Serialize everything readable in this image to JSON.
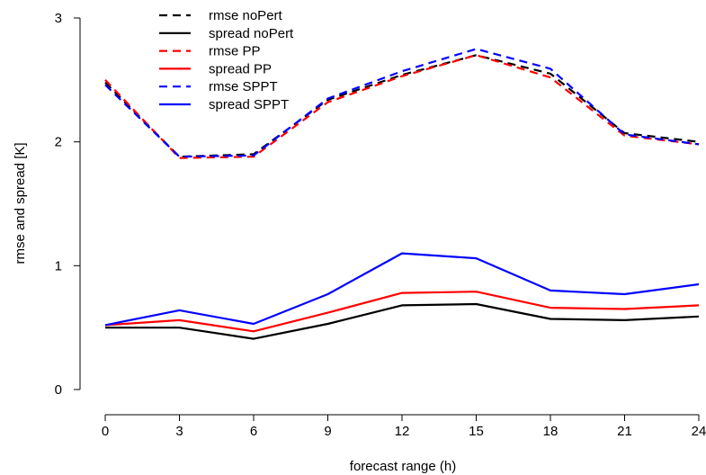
{
  "chart_data": {
    "type": "line",
    "xlabel": "forecast range (h)",
    "ylabel": "rmse and spread [K]",
    "x": [
      0,
      3,
      6,
      9,
      12,
      15,
      18,
      21,
      24
    ],
    "xlim": [
      0,
      24
    ],
    "ylim": [
      0,
      3
    ],
    "xticks": [
      0,
      3,
      6,
      9,
      12,
      15,
      18,
      21,
      24
    ],
    "yticks": [
      0,
      1,
      2,
      3
    ],
    "grid": false,
    "legend_position": "top-left",
    "series": [
      {
        "name": "rmse noPert",
        "color": "#000000",
        "dash": "dashed",
        "values": [
          2.48,
          1.88,
          1.9,
          2.34,
          2.54,
          2.7,
          2.55,
          2.07,
          2.0
        ]
      },
      {
        "name": "spread noPert",
        "color": "#000000",
        "dash": "solid",
        "values": [
          0.5,
          0.5,
          0.41,
          0.53,
          0.68,
          0.69,
          0.57,
          0.56,
          0.59
        ]
      },
      {
        "name": "rmse PP",
        "color": "#ff0000",
        "dash": "dashed",
        "values": [
          2.5,
          1.87,
          1.88,
          2.32,
          2.53,
          2.7,
          2.52,
          2.05,
          1.98
        ]
      },
      {
        "name": "spread PP",
        "color": "#ff0000",
        "dash": "solid",
        "values": [
          0.52,
          0.56,
          0.47,
          0.62,
          0.78,
          0.79,
          0.66,
          0.65,
          0.68
        ]
      },
      {
        "name": "rmse SPPT",
        "color": "#0000ff",
        "dash": "dashed",
        "values": [
          2.46,
          1.88,
          1.89,
          2.35,
          2.57,
          2.75,
          2.59,
          2.06,
          1.98
        ]
      },
      {
        "name": "spread SPPT",
        "color": "#0000ff",
        "dash": "solid",
        "values": [
          0.52,
          0.64,
          0.53,
          0.77,
          1.1,
          1.06,
          0.8,
          0.77,
          0.85
        ]
      }
    ]
  }
}
